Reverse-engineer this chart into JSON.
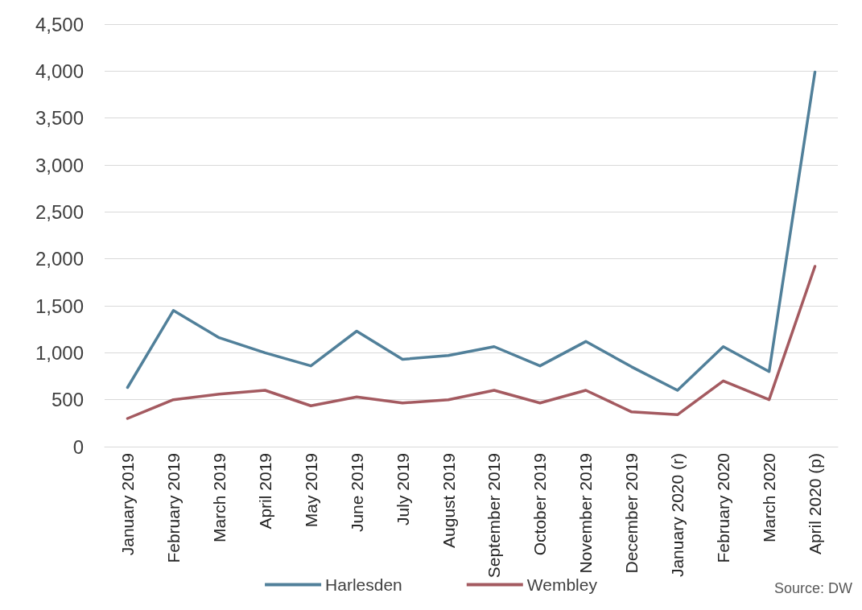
{
  "chart_data": {
    "type": "line",
    "categories": [
      "January 2019",
      "February 2019",
      "March 2019",
      "April 2019",
      "May 2019",
      "June 2019",
      "July 2019",
      "August 2019",
      "September 2019",
      "October 2019",
      "November 2019",
      "December 2019",
      "January 2020 (r)",
      "February 2020",
      "March 2020",
      "April 2020 (p)"
    ],
    "series": [
      {
        "name": "Harlesden",
        "color": "#51809a",
        "values": [
          630,
          1450,
          1160,
          1000,
          860,
          1230,
          930,
          970,
          1065,
          860,
          1120,
          850,
          600,
          1065,
          800,
          3990
        ]
      },
      {
        "name": "Wembley",
        "color": "#a45a60",
        "values": [
          300,
          500,
          560,
          600,
          435,
          530,
          465,
          500,
          600,
          465,
          600,
          370,
          340,
          700,
          500,
          1920
        ]
      }
    ],
    "ylim": [
      0,
      4500
    ],
    "yticks": [
      {
        "value": 0,
        "label": "0"
      },
      {
        "value": 500,
        "label": "500"
      },
      {
        "value": 1000,
        "label": "1,000"
      },
      {
        "value": 1500,
        "label": "1,500"
      },
      {
        "value": 2000,
        "label": "2,000"
      },
      {
        "value": 2500,
        "label": "2,500"
      },
      {
        "value": 3000,
        "label": "3,000"
      },
      {
        "value": 3500,
        "label": "3,500"
      },
      {
        "value": 4000,
        "label": "4,000"
      },
      {
        "value": 4500,
        "label": "4,500"
      }
    ],
    "grid": "y",
    "legend": "bottom",
    "marker": "none",
    "line_style": "solid",
    "annotations": [
      "Source: DW"
    ]
  }
}
